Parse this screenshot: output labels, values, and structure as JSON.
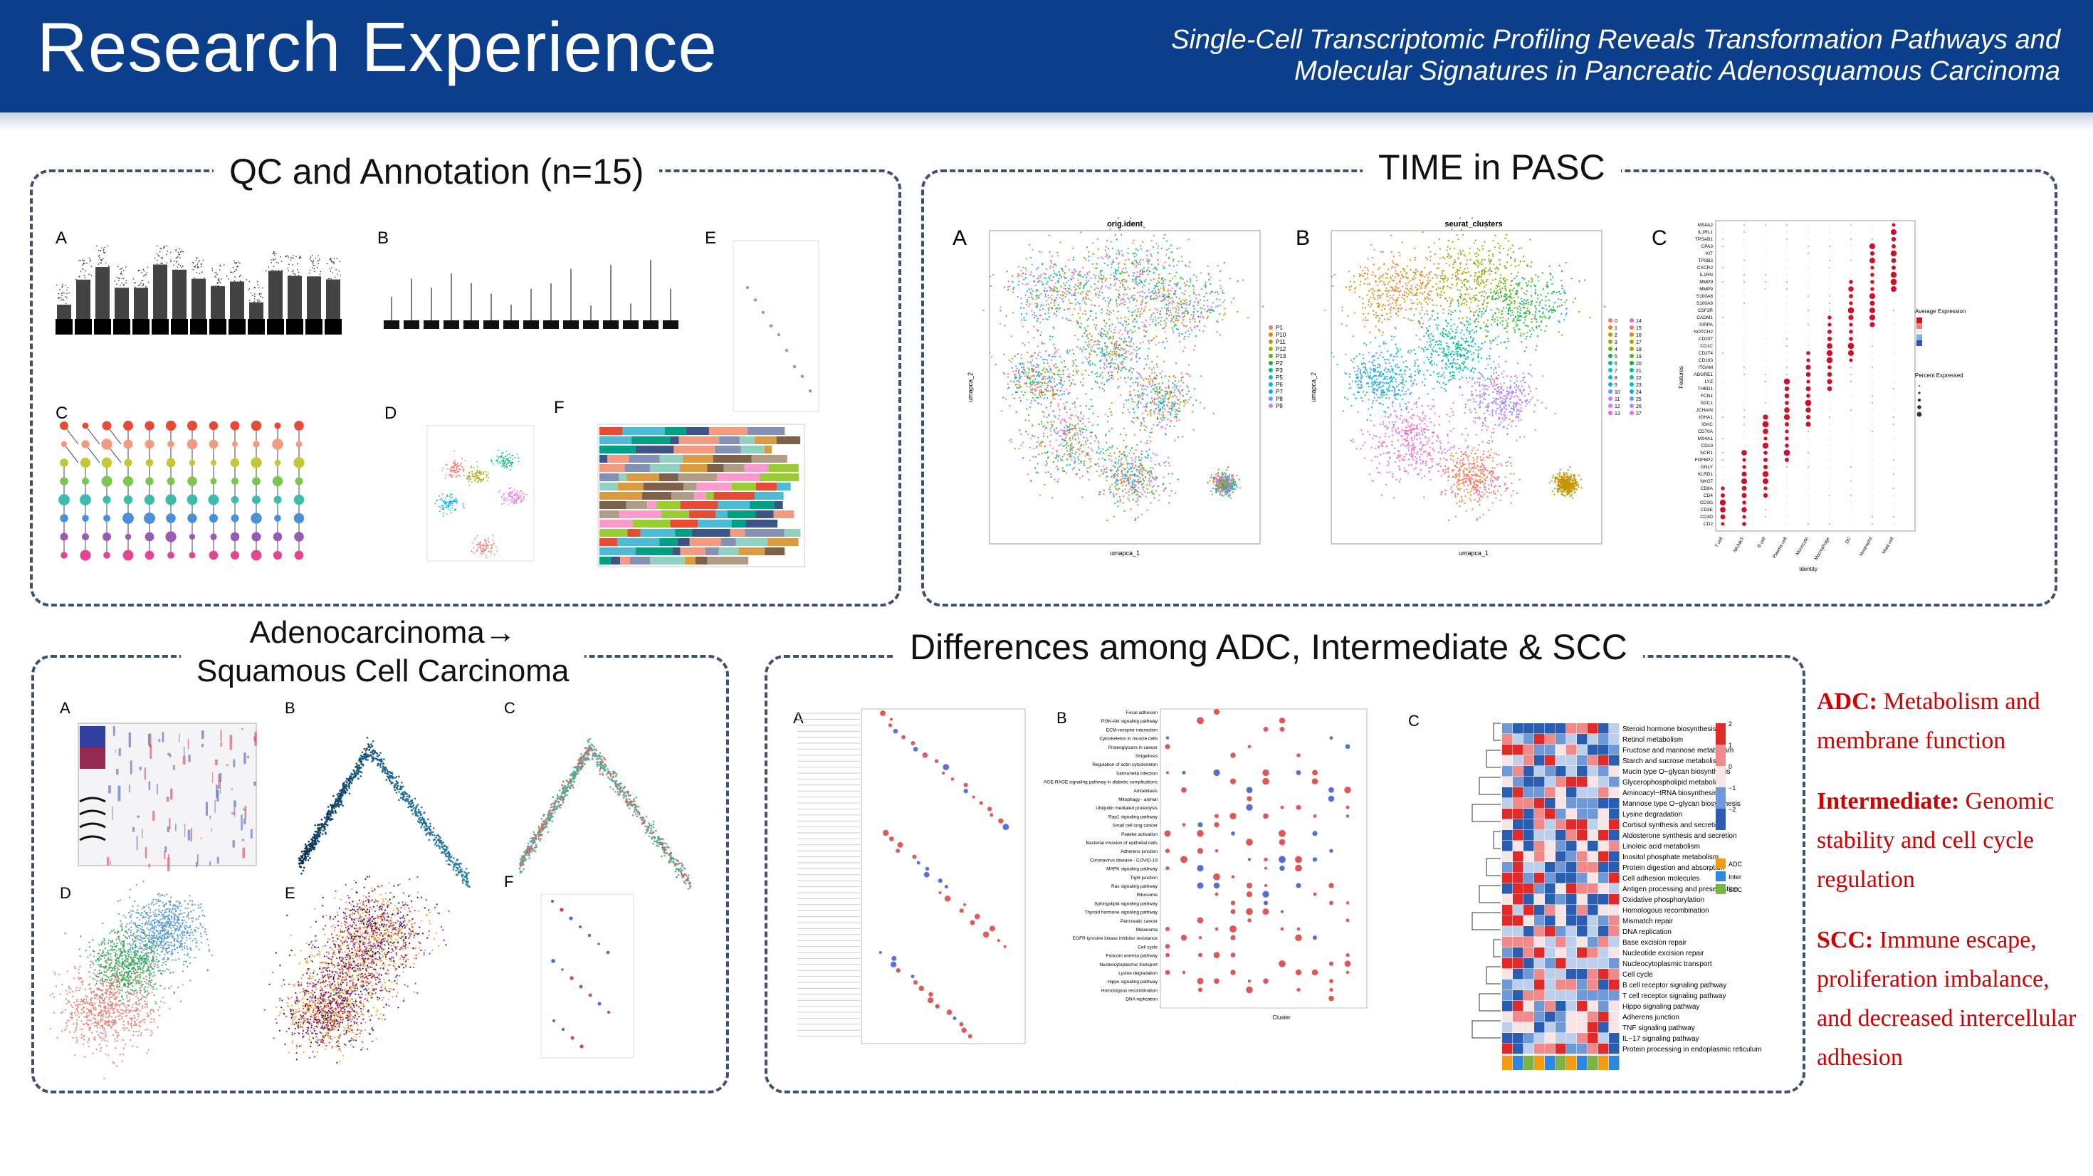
{
  "header": {
    "title": "Research Experience",
    "subtitle_line1": "Single-Cell Transcriptomic Profiling Reveals Transformation Pathways and",
    "subtitle_line2": "Molecular Signatures in Pancreatic Adenosquamous Carcinoma"
  },
  "panels": {
    "qc": {
      "title": "QC and Annotation (n=15)",
      "labels": [
        "A",
        "B",
        "C",
        "D",
        "E",
        "F"
      ]
    },
    "time": {
      "title": "TIME in PASC",
      "labels": [
        "A",
        "B",
        "C"
      ],
      "umap_a_title": "orig.ident",
      "umap_b_title": "seurat_clusters",
      "axis_x": "umapca_1",
      "axis_y": "umapca_2",
      "legend_a": [
        "P1",
        "P10",
        "P11",
        "P12",
        "P13",
        "P2",
        "P3",
        "P5",
        "P6",
        "P7",
        "P8",
        "P9"
      ],
      "legend_b": [
        "0",
        "1",
        "2",
        "3",
        "4",
        "5",
        "6",
        "7",
        "8",
        "9",
        "10",
        "11",
        "12",
        "13",
        "14",
        "15",
        "16",
        "17",
        "18",
        "19",
        "20",
        "21",
        "22",
        "23",
        "24",
        "25",
        "26",
        "27"
      ],
      "dot_genes": [
        "MS4A2",
        "IL1RL1",
        "TPSAB1",
        "CPA3",
        "KIT",
        "TPSB2",
        "CXCR2",
        "IL1RN",
        "MMP9",
        "MMP9",
        "S100A8",
        "S100A9",
        "CSF3R",
        "CADM1",
        "SIRPA",
        "NOTCH2",
        "CD207",
        "CD1C",
        "CD274",
        "CD163",
        "ITGAM",
        "ADGRE1",
        "LYZ",
        "THBD1",
        "FCN1",
        "SDC1",
        "JCHAIN",
        "IGHA1",
        "IGKC",
        "CD79A",
        "MS4A1",
        "CD19",
        "NCR1",
        "FGFBP2",
        "GNLY",
        "KLRD1",
        "NKG7",
        "CD8A",
        "CD4",
        "CD3G",
        "CD3E",
        "CD3D",
        "CD2"
      ],
      "dot_identities": [
        "T cell",
        "NK/NKT",
        "B cell",
        "Plasma cell",
        "Monocyte",
        "Macrophage",
        "DC",
        "Neutrophil",
        "Mast cell"
      ],
      "dot_xlabel": "Identity",
      "dot_ylabel": "Features",
      "dot_legend_title1": "Average Expression",
      "dot_legend_title2": "Percent Expressed"
    },
    "transition": {
      "title_line1": "Adenocarcinoma→",
      "title_line2": "Squamous Cell Carcinoma",
      "labels": [
        "A",
        "B",
        "C",
        "D",
        "E",
        "F"
      ]
    },
    "differences": {
      "title": "Differences among ADC, Intermediate & SCC",
      "labels": [
        "A",
        "B",
        "C"
      ],
      "kegg_terms": [
        "Focal adhesion",
        "PI3K-Akt signaling pathway",
        "ECM-receptor interaction",
        "Cytoskeleton in muscle cells",
        "Proteoglycans in cancer",
        "Shigellosis",
        "Regulation of actin cytoskeleton",
        "Salmonella infection",
        "AGE-RAGE signaling pathway in diabetic complications",
        "Amoebiasis",
        "Mitophagy - animal",
        "Ubiquitin mediated proteolysis",
        "Rap1 signaling pathway",
        "Small cell lung cancer",
        "Platelet activation",
        "Bacterial invasion of epithelial cells",
        "Adherens junction",
        "Coronavirus disease - COVID-19",
        "MAPK signaling pathway",
        "Tight junction",
        "Ras signaling pathway",
        "Ribosome",
        "Sphingolipid signaling pathway",
        "Thyroid hormone signaling pathway",
        "Pancreatic cancer",
        "Melanoma",
        "EGFR tyrosine kinase inhibitor resistance",
        "Cell cycle",
        "Fanconi anemia pathway",
        "Nucleocytoplasmic transport",
        "Lysine degradation",
        "Hippo signaling pathway",
        "Homologous recombination",
        "DNA replication"
      ],
      "kegg_xlabel": "Cluster",
      "heatmap_terms": [
        "Steroid hormone biosynthesis",
        "Retinol metabolism",
        "Fructose and mannose metabolism",
        "Starch and sucrose metabolism",
        "Mucin type O−glycan biosynthesis",
        "Glycerophospholipid metabolism",
        "Aminoacyl−tRNA biosynthesis",
        "Mannose type O−glycan biosynthesis",
        "Lysine degradation",
        "Cortisol synthesis and secretion",
        "Aldosterone synthesis and secretion",
        "Linoleic acid metabolism",
        "Inositol phosphate metabolism",
        "Protein digestion and absorption",
        "Cell adhesion molecules",
        "Antigen processing and presentation",
        "Oxidative phosphorylation",
        "Homologous recombination",
        "Mismatch repair",
        "DNA replication",
        "Base excision repair",
        "Nucleotide excision repair",
        "Nucleocytoplasmic transport",
        "Cell cycle",
        "B cell receptor signaling pathway",
        "T cell receptor signaling pathway",
        "Hippo signaling pathway",
        "Adherens junction",
        "TNF signaling pathway",
        "IL−17 signaling pathway",
        "Protein processing in endoplasmic reticulum"
      ],
      "heatmap_scale": [
        "2",
        "1",
        "0",
        "−1",
        "−2"
      ],
      "heatmap_groups": [
        "ADC",
        "Inter",
        "SCC"
      ]
    }
  },
  "side_notes": [
    {
      "heading": "ADC:",
      "text": " Metabolism and membrane function"
    },
    {
      "heading": "Intermediate:",
      "text": " Genomic stability and cell cycle regulation"
    },
    {
      "heading": "SCC:",
      "text": " Immune escape, proliferation imbalance, and decreased intercellular adhesion"
    }
  ],
  "colors": {
    "header_bg": "#0b3f8c",
    "panel_border": "#3d5170",
    "accent_red": "#d00000"
  }
}
